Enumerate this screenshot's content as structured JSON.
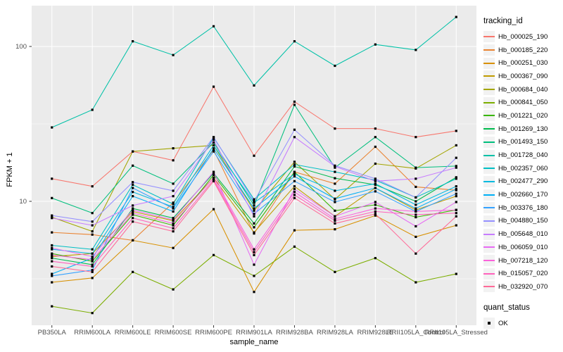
{
  "figure": {
    "x_axis_title": "sample_name",
    "y_axis_title": "FPKM + 1",
    "legend": {
      "tracking_title": "tracking_id",
      "quant_title": "quant_status",
      "quant_items": [
        {
          "label": "OK",
          "symbol": "black-square-point"
        }
      ]
    },
    "colors": {
      "panel_bg": "#EBEBEB",
      "gridline": "#FFFFFF",
      "tick_label": "#4D4D4D",
      "tick_mark": "#333333",
      "point": "#000000",
      "legend_key_bg": "#F2F2F2"
    }
  },
  "chart_data": {
    "type": "line",
    "title": "",
    "xlabel": "sample_name",
    "ylabel": "FPKM + 1",
    "x_scale": "categorical",
    "y_scale": "log10",
    "y_ticks": [
      10,
      100
    ],
    "y_minor_gridlines": [
      3.162,
      31.623
    ],
    "ylim": [
      1.58,
      184
    ],
    "grid": "white on gray panel (ggplot2 style)",
    "legend_position": "right",
    "point_marker": "small black square at every data point (quant_status = OK)",
    "categories": [
      "PB350LA",
      "RRIM600LA",
      "RRIM600LE",
      "RRIM600SE",
      "RRIM600PE",
      "RRIM901LA",
      "RRIM928BA",
      "RRIM928LA",
      "RRIM928LE",
      "RRII105LA_Control",
      "RRII105LA_Stressed"
    ],
    "series": [
      {
        "name": "Hb_000025_190",
        "color": "#F8766D",
        "values": [
          14,
          12.5,
          21,
          18.4,
          55,
          19.7,
          44,
          29.5,
          29.5,
          26,
          28.5
        ]
      },
      {
        "name": "Hb_000185_220",
        "color": "#EA8331",
        "values": [
          6.3,
          6.1,
          5.6,
          9.8,
          21.5,
          6.2,
          15.5,
          13,
          22.5,
          12.4,
          11.8
        ]
      },
      {
        "name": "Hb_000251_030",
        "color": "#D89000",
        "values": [
          3.0,
          3.2,
          5.6,
          5.0,
          8.9,
          2.6,
          6.5,
          6.6,
          8.1,
          5.9,
          7.0
        ]
      },
      {
        "name": "Hb_000367_090",
        "color": "#C09B00",
        "values": [
          4.4,
          4.6,
          8.6,
          7.5,
          14.2,
          6.3,
          12.5,
          8.0,
          12.2,
          8.8,
          10.8
        ]
      },
      {
        "name": "Hb_000684_040",
        "color": "#A3A500",
        "values": [
          7.9,
          6.4,
          21,
          22,
          23,
          8.7,
          18,
          10.3,
          17.5,
          16.3,
          23
        ]
      },
      {
        "name": "Hb_000841_050",
        "color": "#7CAE00",
        "values": [
          2.1,
          1.9,
          3.5,
          2.7,
          4.5,
          3.3,
          5.1,
          3.5,
          4.3,
          3.0,
          3.4
        ]
      },
      {
        "name": "Hb_001221_020",
        "color": "#39B600",
        "values": [
          4.6,
          4.1,
          8.2,
          7.0,
          14.8,
          6.8,
          15.5,
          8.7,
          9.5,
          7.9,
          8.8
        ]
      },
      {
        "name": "Hb_001269_130",
        "color": "#00BB4E",
        "values": [
          4.3,
          3.9,
          9.0,
          7.8,
          15.2,
          7.2,
          16.8,
          14.1,
          12.8,
          10.0,
          14.3
        ]
      },
      {
        "name": "Hb_001493_150",
        "color": "#00BF7D",
        "values": [
          10.5,
          8.4,
          17,
          13,
          24,
          9.4,
          42,
          16.5,
          26,
          16.5,
          16.9
        ]
      },
      {
        "name": "Hb_001728_040",
        "color": "#00C1A7",
        "values": [
          30,
          39,
          108,
          88,
          135,
          56,
          108,
          75,
          103,
          95,
          155
        ]
      },
      {
        "name": "Hb_002357_060",
        "color": "#00BFC4",
        "values": [
          5.2,
          4.9,
          12.8,
          9.6,
          25.8,
          10.3,
          17.3,
          15.5,
          13.7,
          10.6,
          14.0
        ]
      },
      {
        "name": "Hb_002477_290",
        "color": "#00BAE0",
        "values": [
          4.9,
          4.6,
          11.5,
          9.2,
          23,
          9.8,
          15.0,
          11.7,
          13.0,
          9.5,
          12.5
        ]
      },
      {
        "name": "Hb_002660_170",
        "color": "#00B0F6",
        "values": [
          3.4,
          4.3,
          10.8,
          8.6,
          22,
          9.0,
          14.5,
          10.4,
          12.2,
          9.0,
          12.0
        ]
      },
      {
        "name": "Hb_003376_180",
        "color": "#35A2FF",
        "values": [
          3.3,
          3.6,
          12.2,
          9.0,
          21,
          8.3,
          13.5,
          9.9,
          11.6,
          8.6,
          11.2
        ]
      },
      {
        "name": "Hb_004880_150",
        "color": "#9590FF",
        "values": [
          8.1,
          7.4,
          13.3,
          11.7,
          26,
          10.0,
          29,
          17,
          14.0,
          10.6,
          19.1
        ]
      },
      {
        "name": "Hb_005648_010",
        "color": "#C77CFF",
        "values": [
          7.8,
          7.0,
          9.4,
          10.8,
          25,
          8.0,
          26,
          16.8,
          13.5,
          14.0,
          16.5
        ]
      },
      {
        "name": "Hb_006059_010",
        "color": "#E76BF3",
        "values": [
          5.0,
          4.4,
          8.8,
          7.6,
          15.5,
          3.9,
          12.0,
          8.0,
          9.9,
          6.9,
          9.9
        ]
      },
      {
        "name": "Hb_007218_120",
        "color": "#FA62DB",
        "values": [
          4.5,
          4.2,
          8.4,
          7.2,
          14.2,
          4.9,
          11.5,
          7.7,
          9.0,
          8.6,
          8.8
        ]
      },
      {
        "name": "Hb_015057_020",
        "color": "#FF62BC",
        "values": [
          4.1,
          3.8,
          7.8,
          6.7,
          13.8,
          4.7,
          11.0,
          7.5,
          8.6,
          8.2,
          8.4
        ]
      },
      {
        "name": "Hb_032920_070",
        "color": "#FF6A98",
        "values": [
          3.8,
          3.5,
          7.4,
          6.4,
          13.5,
          4.5,
          10.5,
          7.2,
          8.3,
          4.6,
          8.0
        ]
      }
    ]
  }
}
